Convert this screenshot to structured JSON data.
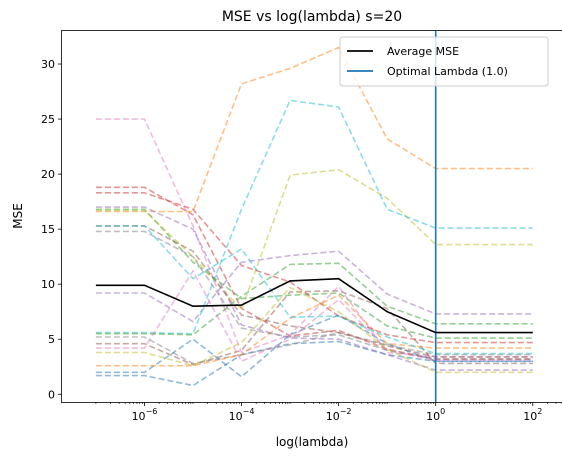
{
  "chart_data": {
    "type": "line",
    "title": "MSE vs log(lambda) s=20",
    "xlabel": "log(lambda)",
    "ylabel": "MSE",
    "xscale": "log",
    "x": [
      1e-07,
      1e-06,
      1e-05,
      0.0001,
      0.001,
      0.01,
      0.1,
      1,
      100
    ],
    "xlim": [
      2e-08,
      400
    ],
    "ylim": [
      -0.7,
      33
    ],
    "x_ticks": [
      {
        "value": 1e-06,
        "base": "10",
        "exp": "−6"
      },
      {
        "value": 0.0001,
        "base": "10",
        "exp": "−4"
      },
      {
        "value": 0.01,
        "base": "10",
        "exp": "−2"
      },
      {
        "value": 1,
        "base": "10",
        "exp": "0"
      },
      {
        "value": 100,
        "base": "10",
        "exp": "2"
      }
    ],
    "y_ticks": [
      0,
      5,
      10,
      15,
      20,
      25,
      30
    ],
    "grid": false,
    "legend_position": "top-right",
    "legend": [
      {
        "label": "Average MSE",
        "color": "#000000"
      },
      {
        "label": "Optimal Lambda (1.0)",
        "color": "#1f77b4"
      }
    ],
    "average": {
      "values": [
        9.9,
        9.9,
        8.0,
        8.1,
        10.3,
        10.5,
        7.5,
        5.6,
        5.6
      ],
      "color": "#000000"
    },
    "optimal_lambda": {
      "x": 1,
      "color": "#1f77b4"
    },
    "series": [
      {
        "color": "#1f77b4",
        "values": [
          1.7,
          1.7,
          0.8,
          3.6,
          4.6,
          4.8,
          3.6,
          3.0,
          3.0
        ]
      },
      {
        "color": "#ff7f0e",
        "values": [
          16.6,
          16.6,
          16.6,
          28.2,
          29.6,
          31.5,
          23.2,
          20.5,
          20.5
        ]
      },
      {
        "color": "#2ca02c",
        "values": [
          16.8,
          16.8,
          12.0,
          8.7,
          9.0,
          9.2,
          6.2,
          5.1,
          5.1
        ]
      },
      {
        "color": "#d62728",
        "values": [
          18.8,
          18.8,
          16.3,
          7.8,
          5.3,
          5.8,
          4.1,
          3.2,
          3.2
        ]
      },
      {
        "color": "#9467bd",
        "values": [
          9.2,
          9.2,
          6.6,
          12.0,
          12.6,
          13.0,
          9.1,
          7.3,
          7.3
        ]
      },
      {
        "color": "#8c564b",
        "values": [
          4.6,
          4.6,
          2.7,
          4.0,
          9.3,
          9.4,
          7.8,
          2.8,
          2.8
        ]
      },
      {
        "color": "#e377c2",
        "values": [
          25.0,
          25.0,
          15.3,
          3.8,
          5.4,
          9.8,
          3.8,
          3.4,
          3.4
        ]
      },
      {
        "color": "#7f7f7f",
        "values": [
          5.2,
          5.2,
          2.8,
          3.6,
          4.5,
          5.6,
          4.5,
          3.6,
          3.6
        ]
      },
      {
        "color": "#bcbd22",
        "values": [
          16.7,
          16.7,
          12.5,
          7.7,
          19.9,
          20.4,
          17.8,
          13.6,
          13.6
        ]
      },
      {
        "color": "#17becf",
        "values": [
          5.6,
          5.6,
          5.5,
          16.8,
          26.7,
          26.1,
          16.8,
          15.1,
          15.1
        ]
      },
      {
        "color": "#1f77b4",
        "values": [
          2.0,
          2.0,
          5.0,
          1.6,
          5.4,
          7.2,
          4.6,
          3.0,
          3.0
        ]
      },
      {
        "color": "#ff7f0e",
        "values": [
          2.6,
          2.6,
          2.6,
          3.6,
          6.9,
          9.0,
          4.6,
          4.2,
          4.2
        ]
      },
      {
        "color": "#2ca02c",
        "values": [
          5.5,
          5.5,
          5.4,
          8.9,
          11.8,
          11.9,
          8.0,
          6.4,
          6.4
        ]
      },
      {
        "color": "#d62728",
        "values": [
          18.3,
          18.3,
          16.8,
          11.7,
          10.2,
          7.1,
          5.4,
          4.7,
          4.7
        ]
      },
      {
        "color": "#9467bd",
        "values": [
          17.0,
          17.0,
          15.0,
          6.3,
          5.1,
          5.0,
          3.6,
          2.2,
          2.2
        ]
      },
      {
        "color": "#8c564b",
        "values": [
          15.3,
          15.3,
          13.0,
          7.2,
          6.2,
          5.6,
          4.4,
          3.4,
          3.4
        ]
      },
      {
        "color": "#e377c2",
        "values": [
          4.2,
          4.2,
          11.2,
          3.0,
          5.0,
          8.6,
          4.0,
          3.1,
          3.1
        ]
      },
      {
        "color": "#7f7f7f",
        "values": [
          14.8,
          14.8,
          12.5,
          6.0,
          5.2,
          5.4,
          4.0,
          3.2,
          3.2
        ]
      },
      {
        "color": "#bcbd22",
        "values": [
          3.8,
          3.8,
          2.6,
          4.7,
          9.7,
          7.5,
          4.1,
          2.0,
          2.0
        ]
      },
      {
        "color": "#17becf",
        "values": [
          15.3,
          15.3,
          10.5,
          13.2,
          7.0,
          7.1,
          5.2,
          3.7,
          3.7
        ]
      }
    ]
  }
}
